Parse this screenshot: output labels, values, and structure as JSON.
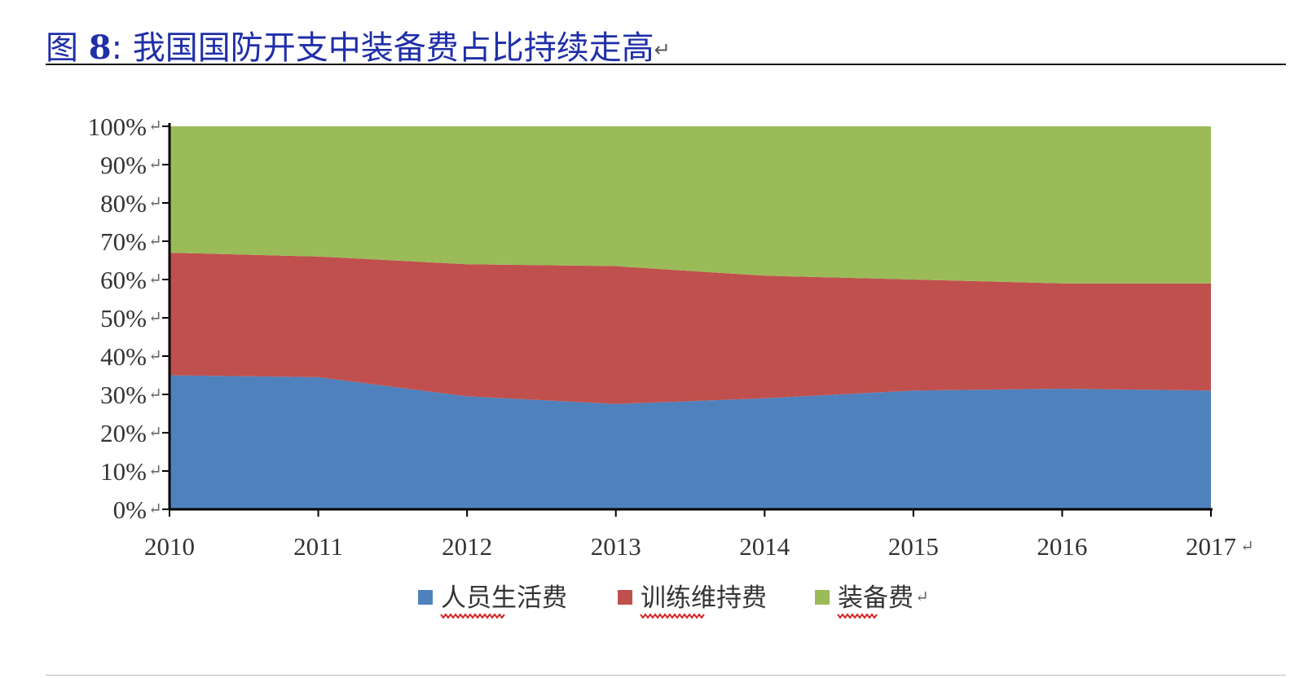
{
  "figure": {
    "label": "图",
    "number": "8",
    "separator": ":",
    "caption": "我国国防开支中装备费占比持续走高",
    "return_mark": "↵"
  },
  "chart_data": {
    "type": "area",
    "stacked": "percent",
    "title": "",
    "xlabel": "",
    "ylabel": "",
    "categories": [
      "2010",
      "2011",
      "2012",
      "2013",
      "2014",
      "2015",
      "2016",
      "2017"
    ],
    "series": [
      {
        "name": "人员生活费",
        "color": "#4f81bd",
        "values": [
          35,
          34.5,
          29.5,
          27.5,
          29,
          31,
          31.5,
          31
        ]
      },
      {
        "name": "训练维持费",
        "color": "#c0504d",
        "values": [
          32,
          31.5,
          34.5,
          36,
          32,
          29,
          27.5,
          28
        ]
      },
      {
        "name": "装备费",
        "color": "#9bbb59",
        "values": [
          33,
          34,
          36,
          36.5,
          39,
          40,
          41,
          41
        ]
      }
    ],
    "ylim": [
      0,
      100
    ],
    "yticks": [
      "0%",
      "10%",
      "20%",
      "30%",
      "40%",
      "50%",
      "60%",
      "70%",
      "80%",
      "90%",
      "100%"
    ],
    "grid": false,
    "legend_position": "bottom"
  }
}
